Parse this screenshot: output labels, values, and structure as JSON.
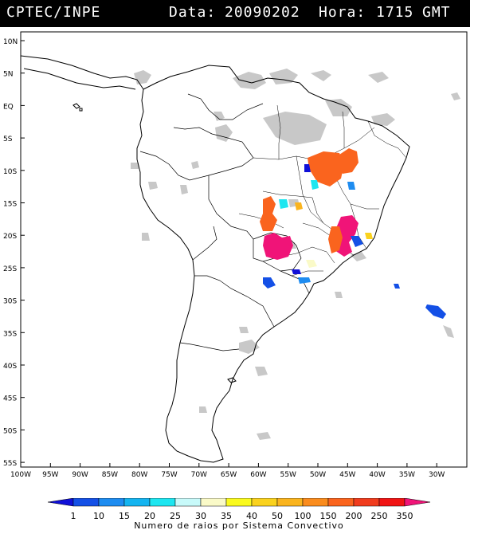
{
  "header": {
    "source": "CPTEC/INPE",
    "date_label": "Data:",
    "date_value": "20090202",
    "hour_label": "Hora:",
    "hour_value": "1715",
    "timezone": "GMT"
  },
  "map": {
    "lon_range": [
      -100,
      -25
    ],
    "lat_range": [
      -56,
      13
    ],
    "lat_labels": [
      "10N",
      "5N",
      "EQ",
      "5S",
      "10S",
      "15S",
      "20S",
      "25S",
      "30S",
      "35S",
      "40S",
      "45S",
      "50S",
      "55S"
    ],
    "lon_labels": [
      "100W",
      "95W",
      "90W",
      "85W",
      "80W",
      "75W",
      "70W",
      "65W",
      "60W",
      "55W",
      "50W",
      "45W",
      "40W",
      "35W",
      "30W"
    ],
    "cloud_color": "#c8c8c8",
    "coast_color": "#000000"
  },
  "colorbar": {
    "title": "Numero de raios por Sistema Convectivo",
    "labels": [
      "1",
      "10",
      "15",
      "20",
      "25",
      "30",
      "35",
      "40",
      "50",
      "100",
      "150",
      "200",
      "250",
      "350"
    ],
    "colors": [
      "#1010d8",
      "#1450e6",
      "#1e8cf0",
      "#14b4f0",
      "#1ee6f0",
      "#c8fafa",
      "#fafac8",
      "#fafa1e",
      "#fad21e",
      "#fab41e",
      "#fa8c1e",
      "#fa641e",
      "#f03c1e",
      "#f01414",
      "#f01478"
    ]
  },
  "storms": [
    {
      "id": "bahia-north",
      "color_index": 11
    },
    {
      "id": "tocantins",
      "color_index": 11
    },
    {
      "id": "goias-cyan",
      "color_index": 4
    },
    {
      "id": "mato-grosso",
      "color_index": 11
    },
    {
      "id": "minas-pink",
      "color_index": 14
    },
    {
      "id": "mato-grosso-sul",
      "color_index": 14
    },
    {
      "id": "atlantic-blue",
      "color_index": 1
    }
  ]
}
